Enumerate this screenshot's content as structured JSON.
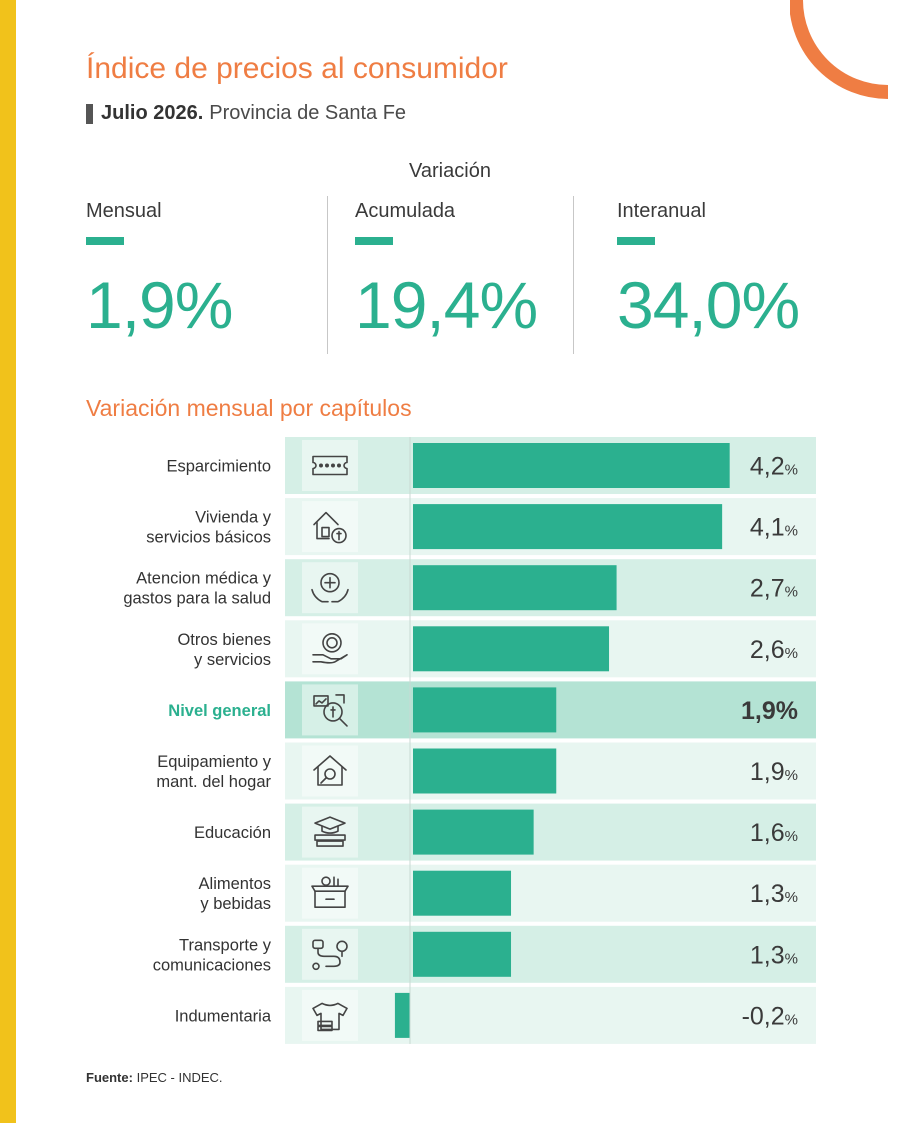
{
  "header": {
    "title": "Índice de precios al consumidor",
    "subtitle_bold": "Julio 2026.",
    "subtitle_rest": "Provincia de Santa Fe"
  },
  "variation": {
    "heading": "Variación",
    "kpis": [
      {
        "label": "Mensual",
        "value": "1,9%"
      },
      {
        "label": "Acumulada",
        "value": "19,4%"
      },
      {
        "label": "Interanual",
        "value": "34,0%"
      }
    ]
  },
  "section_title": "Variación mensual por capítulos",
  "colors": {
    "accent_orange": "#ef7d43",
    "bar_green": "#2bb08f",
    "row_light": "#e8f6f1",
    "row_dark": "#d5efe6",
    "row_highlight": "#b4e3d4",
    "stripe_yellow": "#f1c21b"
  },
  "chart_data": {
    "type": "bar",
    "orientation": "horizontal",
    "unit": "%",
    "highlight_category": "Nivel general",
    "categories": [
      {
        "label": [
          "Esparcimiento"
        ],
        "icon": "ticket-icon",
        "value": 4.2,
        "display": "4,2"
      },
      {
        "label": [
          "Vivienda y",
          "servicios básicos"
        ],
        "icon": "house-bill-icon",
        "value": 4.1,
        "display": "4,1"
      },
      {
        "label": [
          "Atencion médica y",
          "gastos para la salud"
        ],
        "icon": "health-hands-icon",
        "value": 2.7,
        "display": "2,7"
      },
      {
        "label": [
          "Otros bienes",
          "y servicios"
        ],
        "icon": "hand-coin-icon",
        "value": 2.6,
        "display": "2,6"
      },
      {
        "label": [
          "Nivel general"
        ],
        "icon": "price-search-icon",
        "value": 1.9,
        "display": "1,9"
      },
      {
        "label": [
          "Equipamiento y",
          "mant. del hogar"
        ],
        "icon": "house-wrench-icon",
        "value": 1.9,
        "display": "1,9"
      },
      {
        "label": [
          "Educación"
        ],
        "icon": "graduation-books-icon",
        "value": 1.6,
        "display": "1,6"
      },
      {
        "label": [
          "Alimentos",
          "y bebidas"
        ],
        "icon": "grocery-box-icon",
        "value": 1.3,
        "display": "1,3"
      },
      {
        "label": [
          "Transporte y",
          "comunicaciones"
        ],
        "icon": "route-icon",
        "value": 1.3,
        "display": "1,3"
      },
      {
        "label": [
          "Indumentaria"
        ],
        "icon": "clothes-icon",
        "value": -0.2,
        "display": "-0,2"
      }
    ]
  },
  "source": {
    "label": "Fuente:",
    "text": "IPEC - INDEC."
  }
}
